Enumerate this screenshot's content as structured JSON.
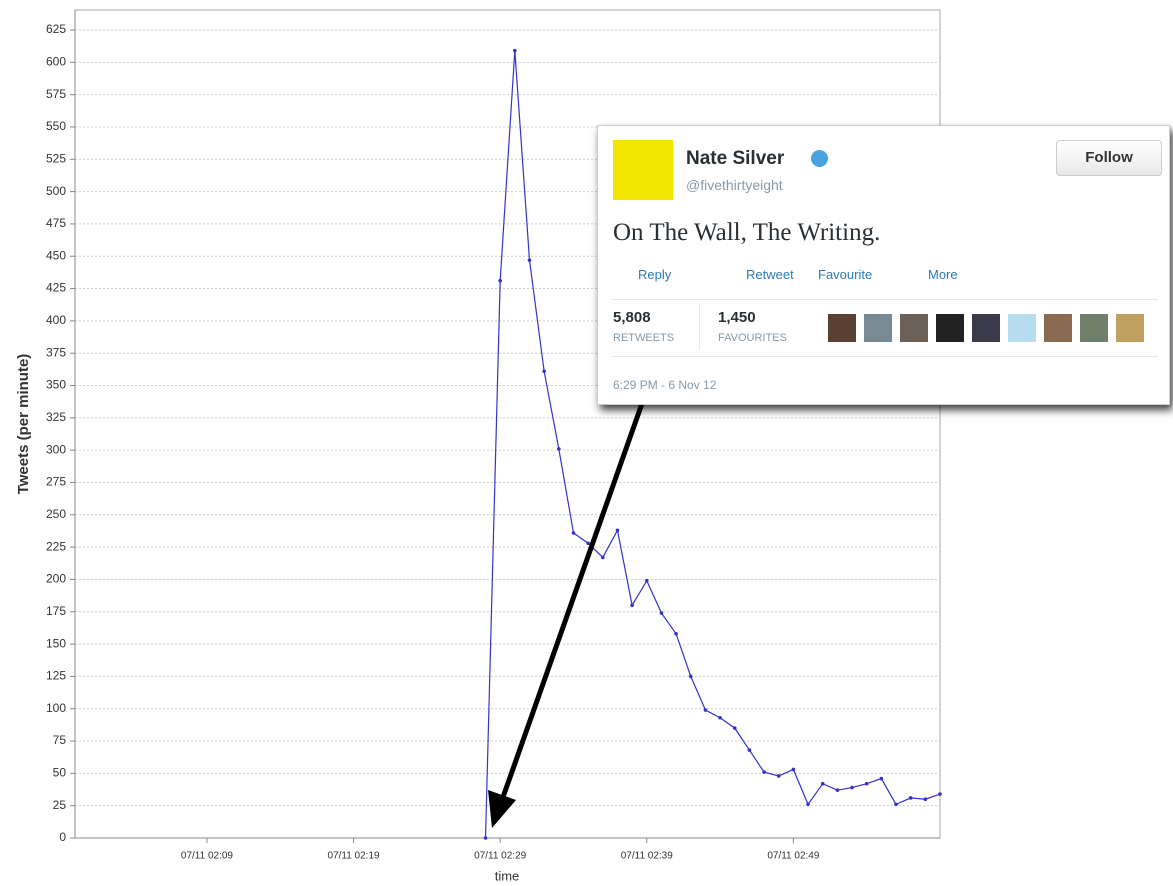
{
  "chart_data": {
    "type": "line",
    "x_label": "time",
    "y_label": "Tweets (per minute)",
    "x": [
      "07/11 02:28",
      "07/11 02:29",
      "07/11 02:30",
      "07/11 02:31",
      "07/11 02:32",
      "07/11 02:33",
      "07/11 02:34",
      "07/11 02:35",
      "07/11 02:36",
      "07/11 02:37",
      "07/11 02:38",
      "07/11 02:39",
      "07/11 02:40",
      "07/11 02:41",
      "07/11 02:42",
      "07/11 02:43",
      "07/11 02:44",
      "07/11 02:45",
      "07/11 02:46",
      "07/11 02:47",
      "07/11 02:48",
      "07/11 02:49",
      "07/11 02:50",
      "07/11 02:51",
      "07/11 02:52",
      "07/11 02:53",
      "07/11 02:54",
      "07/11 02:55",
      "07/11 02:56",
      "07/11 02:57",
      "07/11 02:58",
      "07/11 02:59"
    ],
    "series": [
      {
        "name": "Tweets",
        "color": "#3333cc",
        "values": [
          0,
          431,
          609,
          447,
          361,
          301,
          236,
          228,
          217,
          238,
          180,
          199,
          174,
          158,
          125,
          99,
          93,
          85,
          68,
          51,
          48,
          53,
          26,
          42,
          37,
          39,
          42,
          46,
          26,
          31,
          30,
          34
        ]
      }
    ],
    "xlim": [
      "07/11 02:00",
      "07/11 02:59"
    ],
    "xticks": [
      "07/11 02:09",
      "07/11 02:19",
      "07/11 02:29",
      "07/11 02:39",
      "07/11 02:49"
    ],
    "ylim": [
      0,
      625
    ],
    "yticks": [
      0,
      25,
      50,
      75,
      100,
      125,
      150,
      175,
      200,
      225,
      250,
      275,
      300,
      325,
      350,
      375,
      400,
      425,
      450,
      475,
      500,
      525,
      550,
      575,
      600,
      625
    ],
    "grid": true
  },
  "tweet": {
    "name": "Nate Silver",
    "handle": "@fivethirtyeight",
    "follow": "Follow",
    "text": "On The Wall, The Writing.",
    "actions": [
      "Reply",
      "Retweet",
      "Favourite",
      "More"
    ],
    "stats": [
      {
        "count": "5,808",
        "label": "RETWEETS"
      },
      {
        "count": "1,450",
        "label": "FAVOURITES"
      }
    ],
    "timestamp": "6:29 PM - 6 Nov 12"
  }
}
